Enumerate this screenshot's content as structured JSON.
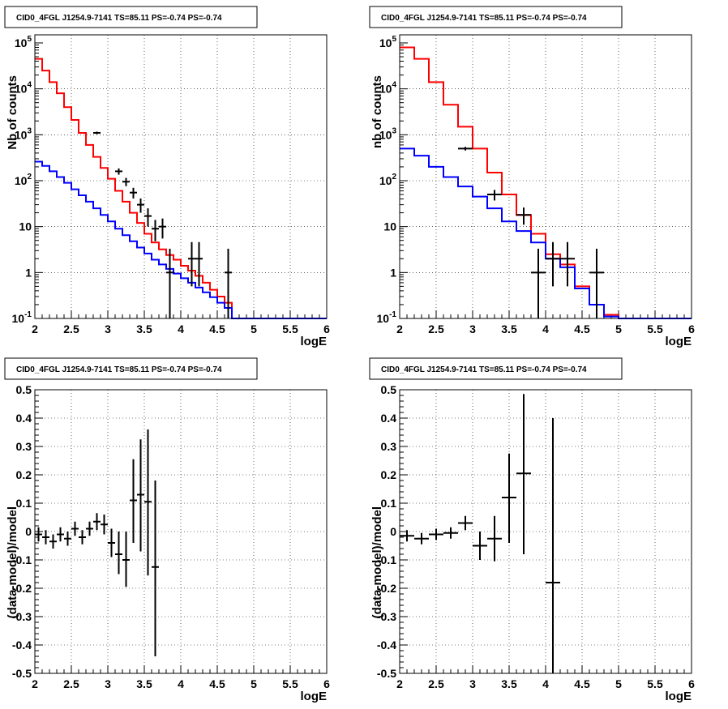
{
  "chart_data": [
    {
      "type": "line",
      "title": "CID0_4FGL J1254.9-7141 TS=85.11 PS=-0.74 PS=-0.74",
      "xlabel": "logE",
      "ylabel": "Nb of counts",
      "log_y": true,
      "xlim": [
        2,
        6
      ],
      "ylim": [
        0.1,
        150000
      ],
      "x_ticks": [
        "2",
        "2.5",
        "3",
        "3.5",
        "4",
        "4.5",
        "5",
        "5.5",
        "6"
      ],
      "y_ticks": [
        "10^{-1}",
        "1",
        "10",
        "10^{2}",
        "10^{3}",
        "10^{4}",
        "10^{5}"
      ],
      "grid": true,
      "series": [
        {
          "kind": "step",
          "color": "#ff0000",
          "edges": [
            2.0,
            2.1,
            2.2,
            2.3,
            2.4,
            2.5,
            2.6,
            2.7,
            2.8,
            2.9,
            3.0,
            3.1,
            3.2,
            3.3,
            3.4,
            3.5,
            3.6,
            3.7,
            3.8,
            3.9,
            4.0,
            4.1,
            4.2,
            4.3,
            4.4,
            4.5,
            4.6,
            4.7,
            4.8,
            4.9,
            5.0,
            5.1,
            5.2,
            5.3,
            5.4,
            5.5,
            5.6,
            5.7,
            5.8,
            5.9,
            6.0
          ],
          "values": [
            45000,
            25000,
            14000,
            8000,
            4000,
            2100,
            1100,
            600,
            330,
            190,
            110,
            60,
            35,
            20,
            12,
            7,
            4.5,
            3.2,
            2.4,
            1.9,
            1.4,
            1.1,
            0.85,
            0.6,
            0.42,
            0.3,
            0.22,
            0.1,
            0.1,
            0.1,
            0.1,
            0.1,
            0.1,
            0.1,
            0.1,
            0.1,
            0.1,
            0.1,
            0.1,
            0.1
          ]
        },
        {
          "kind": "step",
          "color": "#0000ff",
          "edges": [
            2.0,
            2.1,
            2.2,
            2.3,
            2.4,
            2.5,
            2.6,
            2.7,
            2.8,
            2.9,
            3.0,
            3.1,
            3.2,
            3.3,
            3.4,
            3.5,
            3.6,
            3.7,
            3.8,
            3.9,
            4.0,
            4.1,
            4.2,
            4.3,
            4.4,
            4.5,
            4.6,
            4.7,
            4.8,
            4.9,
            5.0,
            5.1,
            5.2,
            5.3,
            5.4,
            5.5,
            5.6,
            5.7,
            5.8,
            5.9,
            6.0
          ],
          "values": [
            260,
            210,
            160,
            120,
            90,
            65,
            48,
            35,
            25,
            18,
            13,
            9,
            6.5,
            4.8,
            3.5,
            2.6,
            1.9,
            1.5,
            1.2,
            0.95,
            0.75,
            0.6,
            0.47,
            0.37,
            0.29,
            0.22,
            0.17,
            0.1,
            0.1,
            0.1,
            0.1,
            0.1,
            0.1,
            0.1,
            0.1,
            0.1,
            0.1,
            0.1,
            0.1,
            0.1
          ]
        },
        {
          "kind": "errorbar",
          "color": "#000000",
          "points": [
            {
              "x": 2.85,
              "y": 1100,
              "xerr": 0.05,
              "lo": 1030,
              "hi": 1170
            },
            {
              "x": 3.15,
              "y": 160,
              "xerr": 0.05,
              "lo": 135,
              "hi": 185
            },
            {
              "x": 3.25,
              "y": 95,
              "xerr": 0.05,
              "lo": 76,
              "hi": 115
            },
            {
              "x": 3.35,
              "y": 55,
              "xerr": 0.05,
              "lo": 41,
              "hi": 70
            },
            {
              "x": 3.45,
              "y": 30,
              "xerr": 0.05,
              "lo": 20,
              "hi": 41
            },
            {
              "x": 3.55,
              "y": 17,
              "xerr": 0.05,
              "lo": 10,
              "hi": 25
            },
            {
              "x": 3.65,
              "y": 9,
              "xerr": 0.05,
              "lo": 4.8,
              "hi": 14
            },
            {
              "x": 3.75,
              "y": 10,
              "xerr": 0.05,
              "lo": 5.5,
              "hi": 15
            },
            {
              "x": 3.85,
              "y": 1,
              "xerr": 0.05,
              "lo": 0.1,
              "hi": 3.3
            },
            {
              "x": 4.15,
              "y": 2,
              "xerr": 0.05,
              "lo": 0.5,
              "hi": 4.6
            },
            {
              "x": 4.25,
              "y": 2,
              "xerr": 0.05,
              "lo": 0.5,
              "hi": 4.6
            },
            {
              "x": 4.65,
              "y": 1,
              "xerr": 0.05,
              "lo": 0.1,
              "hi": 3.3
            }
          ]
        }
      ]
    },
    {
      "type": "line",
      "title": "CID0_4FGL J1254.9-7141 TS=85.11 PS=-0.74 PS=-0.74",
      "xlabel": "logE",
      "ylabel": "nb of counts",
      "log_y": true,
      "xlim": [
        2,
        6
      ],
      "ylim": [
        0.1,
        150000
      ],
      "x_ticks": [
        "2",
        "2.5",
        "3",
        "3.5",
        "4",
        "4.5",
        "5",
        "5.5",
        "6"
      ],
      "y_ticks": [
        "10^{-1}",
        "1",
        "10",
        "10^{2}",
        "10^{3}",
        "10^{4}",
        "10^{5}"
      ],
      "grid": true,
      "series": [
        {
          "kind": "step",
          "color": "#ff0000",
          "edges": [
            2.0,
            2.2,
            2.4,
            2.6,
            2.8,
            3.0,
            3.2,
            3.4,
            3.6,
            3.8,
            4.0,
            4.2,
            4.4,
            4.6,
            4.8,
            5.0,
            5.2,
            5.4,
            5.6,
            5.8,
            6.0
          ],
          "values": [
            80000,
            45000,
            14000,
            4500,
            1500,
            500,
            150,
            50,
            18,
            7,
            2.5,
            1.5,
            0.5,
            0.2,
            0.12,
            0.1,
            0.1,
            0.1,
            0.1,
            0.1
          ]
        },
        {
          "kind": "step",
          "color": "#0000ff",
          "edges": [
            2.0,
            2.2,
            2.4,
            2.6,
            2.8,
            3.0,
            3.2,
            3.4,
            3.6,
            3.8,
            4.0,
            4.2,
            4.4,
            4.6,
            4.8,
            5.0,
            5.2,
            5.4,
            5.6,
            5.8,
            6.0
          ],
          "values": [
            500,
            350,
            200,
            120,
            75,
            45,
            25,
            13,
            8,
            4.5,
            2,
            1.3,
            0.45,
            0.2,
            0.11,
            0.1,
            0.1,
            0.1,
            0.1,
            0.1
          ]
        },
        {
          "kind": "errorbar",
          "color": "#000000",
          "points": [
            {
              "x": 2.9,
              "y": 500,
              "xerr": 0.1,
              "lo": 455,
              "hi": 545
            },
            {
              "x": 3.3,
              "y": 50,
              "xerr": 0.1,
              "lo": 37,
              "hi": 63
            },
            {
              "x": 3.7,
              "y": 18,
              "xerr": 0.1,
              "lo": 11,
              "hi": 26
            },
            {
              "x": 3.9,
              "y": 1,
              "xerr": 0.1,
              "lo": 0.1,
              "hi": 3.3
            },
            {
              "x": 4.1,
              "y": 2,
              "xerr": 0.1,
              "lo": 0.5,
              "hi": 4.6
            },
            {
              "x": 4.3,
              "y": 2,
              "xerr": 0.1,
              "lo": 0.5,
              "hi": 4.6
            },
            {
              "x": 4.7,
              "y": 1,
              "xerr": 0.1,
              "lo": 0.1,
              "hi": 3.3
            }
          ]
        }
      ]
    },
    {
      "type": "scatter",
      "title": "CID0_4FGL J1254.9-7141 TS=85.11 PS=-0.74 PS=-0.74",
      "xlabel": "logE",
      "ylabel": "(data-model)/model",
      "log_y": false,
      "xlim": [
        2,
        6
      ],
      "ylim": [
        -0.5,
        0.5
      ],
      "x_ticks": [
        "2",
        "2.5",
        "3",
        "3.5",
        "4",
        "4.5",
        "5",
        "5.5",
        "6"
      ],
      "y_ticks": [
        "-0.5",
        "-0.4",
        "-0.3",
        "-0.2",
        "-0.1",
        "0",
        "0.1",
        "0.2",
        "0.3",
        "0.4",
        "0.5"
      ],
      "grid": true,
      "series": [
        {
          "kind": "errorbar",
          "color": "#000000",
          "points": [
            {
              "x": 2.05,
              "y": -0.01,
              "xerr": 0.05,
              "lo": -0.035,
              "hi": 0.015
            },
            {
              "x": 2.15,
              "y": -0.02,
              "xerr": 0.05,
              "lo": -0.045,
              "hi": 0.005
            },
            {
              "x": 2.25,
              "y": -0.035,
              "xerr": 0.05,
              "lo": -0.06,
              "hi": -0.01
            },
            {
              "x": 2.35,
              "y": -0.01,
              "xerr": 0.05,
              "lo": -0.035,
              "hi": 0.015
            },
            {
              "x": 2.45,
              "y": -0.025,
              "xerr": 0.05,
              "lo": -0.05,
              "hi": 0.0
            },
            {
              "x": 2.55,
              "y": 0.01,
              "xerr": 0.05,
              "lo": -0.015,
              "hi": 0.035
            },
            {
              "x": 2.65,
              "y": -0.02,
              "xerr": 0.05,
              "lo": -0.045,
              "hi": 0.005
            },
            {
              "x": 2.75,
              "y": 0.01,
              "xerr": 0.05,
              "lo": -0.015,
              "hi": 0.035
            },
            {
              "x": 2.85,
              "y": 0.035,
              "xerr": 0.05,
              "lo": 0.005,
              "hi": 0.065
            },
            {
              "x": 2.95,
              "y": 0.025,
              "xerr": 0.05,
              "lo": -0.01,
              "hi": 0.06
            },
            {
              "x": 3.05,
              "y": -0.04,
              "xerr": 0.05,
              "lo": -0.09,
              "hi": 0.01
            },
            {
              "x": 3.15,
              "y": -0.08,
              "xerr": 0.05,
              "lo": -0.15,
              "hi": 0.0
            },
            {
              "x": 3.25,
              "y": -0.1,
              "xerr": 0.05,
              "lo": -0.195,
              "hi": 0.0
            },
            {
              "x": 3.35,
              "y": 0.11,
              "xerr": 0.05,
              "lo": -0.04,
              "hi": 0.255
            },
            {
              "x": 3.45,
              "y": 0.13,
              "xerr": 0.05,
              "lo": -0.07,
              "hi": 0.325
            },
            {
              "x": 3.55,
              "y": 0.105,
              "xerr": 0.05,
              "lo": -0.155,
              "hi": 0.36
            },
            {
              "x": 3.65,
              "y": -0.125,
              "xerr": 0.05,
              "lo": -0.44,
              "hi": 0.18
            }
          ]
        }
      ]
    },
    {
      "type": "scatter",
      "title": "CID0_4FGL J1254.9-7141 TS=85.11 PS=-0.74 PS=-0.74",
      "xlabel": "logE",
      "ylabel": "(data-model)/model",
      "log_y": false,
      "xlim": [
        2,
        6
      ],
      "ylim": [
        -0.5,
        0.5
      ],
      "x_ticks": [
        "2",
        "2.5",
        "3",
        "3.5",
        "4",
        "4.5",
        "5",
        "5.5",
        "6"
      ],
      "y_ticks": [
        "-0.5",
        "-0.4",
        "-0.3",
        "-0.2",
        "-0.1",
        "0",
        "0.1",
        "0.2",
        "0.3",
        "0.4",
        "0.5"
      ],
      "grid": true,
      "series": [
        {
          "kind": "errorbar",
          "color": "#000000",
          "points": [
            {
              "x": 2.1,
              "y": -0.015,
              "xerr": 0.1,
              "lo": -0.035,
              "hi": 0.005
            },
            {
              "x": 2.3,
              "y": -0.025,
              "xerr": 0.1,
              "lo": -0.045,
              "hi": -0.005
            },
            {
              "x": 2.5,
              "y": -0.01,
              "xerr": 0.1,
              "lo": -0.03,
              "hi": 0.01
            },
            {
              "x": 2.7,
              "y": -0.005,
              "xerr": 0.1,
              "lo": -0.025,
              "hi": 0.015
            },
            {
              "x": 2.9,
              "y": 0.03,
              "xerr": 0.1,
              "lo": 0.005,
              "hi": 0.055
            },
            {
              "x": 3.1,
              "y": -0.05,
              "xerr": 0.1,
              "lo": -0.1,
              "hi": 0.0
            },
            {
              "x": 3.3,
              "y": -0.025,
              "xerr": 0.1,
              "lo": -0.105,
              "hi": 0.055
            },
            {
              "x": 3.5,
              "y": 0.12,
              "xerr": 0.1,
              "lo": -0.04,
              "hi": 0.275
            },
            {
              "x": 3.7,
              "y": 0.205,
              "xerr": 0.1,
              "lo": -0.08,
              "hi": 0.485
            },
            {
              "x": 4.1,
              "y": -0.18,
              "xerr": 0.1,
              "lo": -0.5,
              "hi": 0.4
            }
          ]
        }
      ]
    }
  ]
}
